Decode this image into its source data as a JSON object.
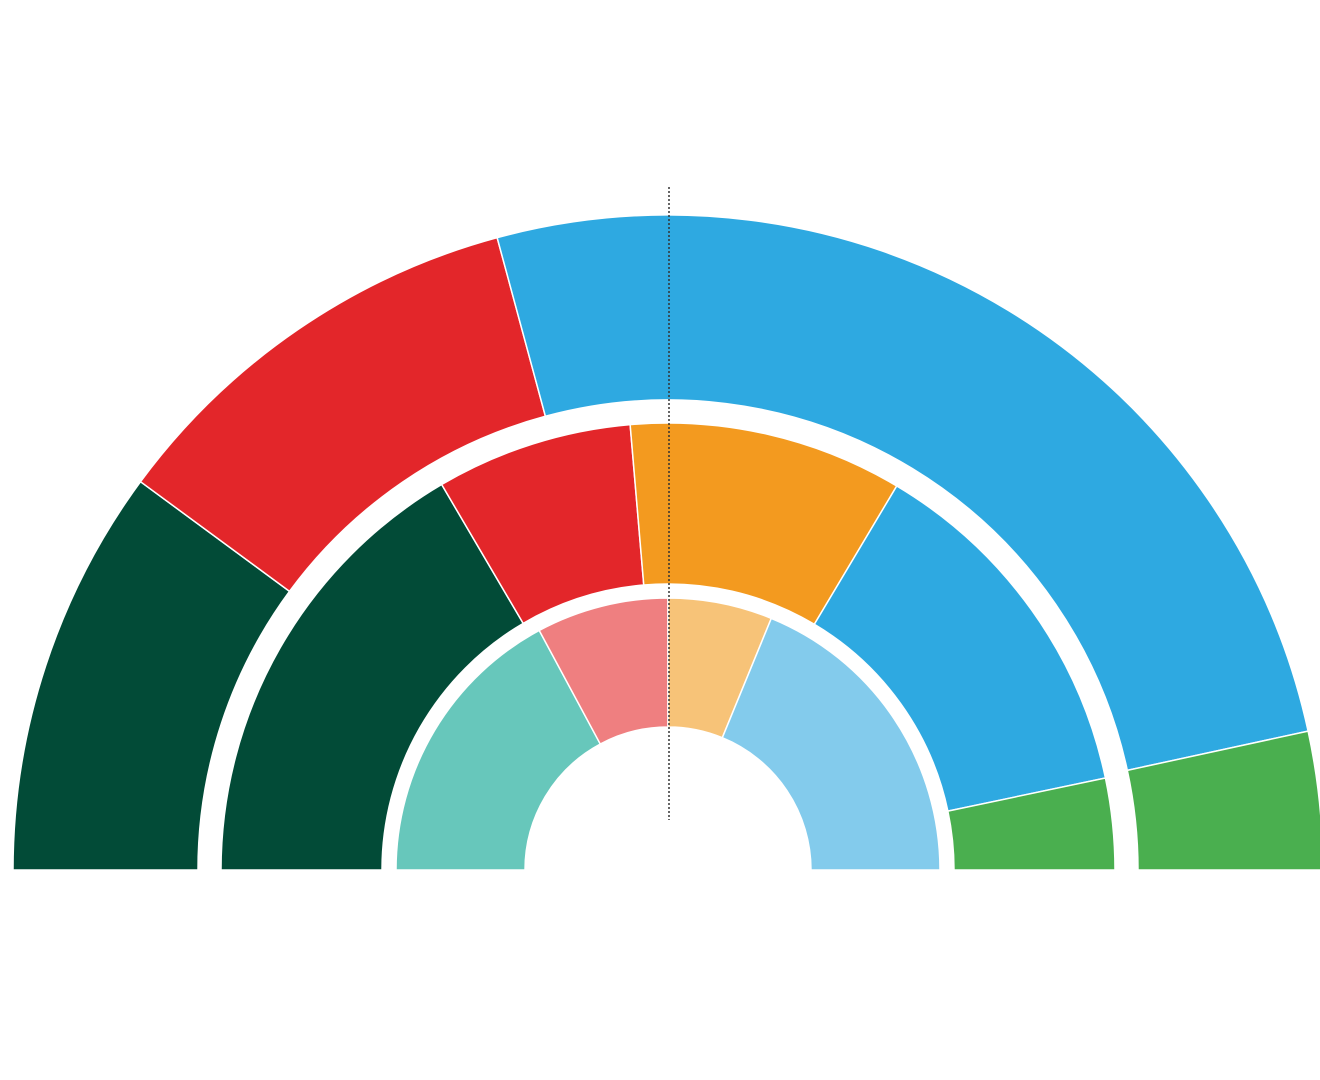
{
  "chart_data": {
    "type": "semi-donut",
    "rings": [
      {
        "values": [
          20.2,
          21.4,
          51.6,
          6.8
        ],
        "colors": [
          "#024b37",
          "#e3262a",
          "#2ea9e1",
          "#4aaf4f"
        ]
      },
      {
        "values": [
          33.1,
          14.2,
          19.8,
          26.3,
          6.6
        ],
        "colors": [
          "#024b37",
          "#e3262a",
          "#f39a1f",
          "#2ea9e1",
          "#4aaf4f"
        ]
      },
      {
        "values": [
          34.3,
          15.7,
          12.4,
          37.6
        ],
        "colors": [
          "#67c7bb",
          "#ef7f80",
          "#f7c378",
          "#83cbec"
        ]
      }
    ]
  }
}
